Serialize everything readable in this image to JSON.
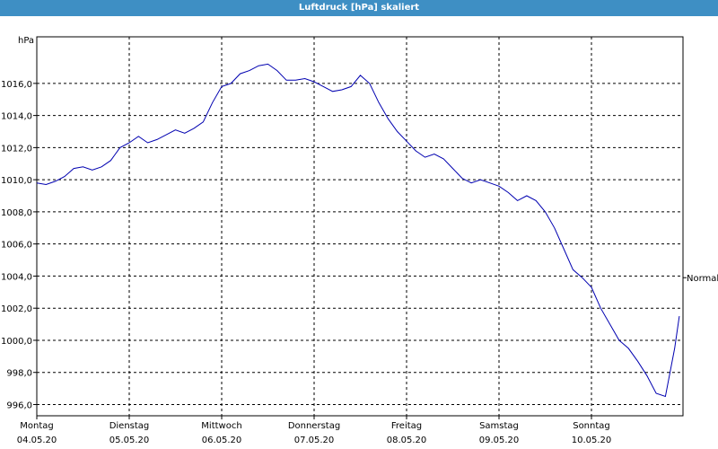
{
  "window": {
    "title": "Luftdruck [hPa] skaliert"
  },
  "colors": {
    "title_bar": "#3e8fc4",
    "series": "#0000b0",
    "grid": "#000000"
  },
  "chart_data": {
    "type": "line",
    "title": "Luftdruck [hPa] skaliert",
    "y_unit_label": "hPa",
    "right_label": "Normal",
    "right_label_value": 1003.9,
    "ylim": [
      995.3,
      1018.9
    ],
    "yticks": [
      "996,0",
      "998,0",
      "1000,0",
      "1002,0",
      "1004,0",
      "1006,0",
      "1008,0",
      "1010,0",
      "1012,0",
      "1014,0",
      "1016,0"
    ],
    "ytick_values": [
      996,
      998,
      1000,
      1002,
      1004,
      1006,
      1008,
      1010,
      1012,
      1014,
      1016
    ],
    "xlim": [
      0,
      7
    ],
    "xticks": [
      {
        "day": "Montag",
        "date": "04.05.20"
      },
      {
        "day": "Dienstag",
        "date": "05.05.20"
      },
      {
        "day": "Mittwoch",
        "date": "06.05.20"
      },
      {
        "day": "Donnerstag",
        "date": "07.05.20"
      },
      {
        "day": "Freitag",
        "date": "08.05.20"
      },
      {
        "day": "Samstag",
        "date": "09.05.20"
      },
      {
        "day": "Sonntag",
        "date": "10.05.20"
      }
    ],
    "grid": true,
    "series": [
      {
        "x": [
          0,
          0.1,
          0.2,
          0.3,
          0.4,
          0.5,
          0.6,
          0.7,
          0.8,
          0.9,
          1.0,
          1.1,
          1.2,
          1.3,
          1.4,
          1.5,
          1.6,
          1.7,
          1.8,
          1.9,
          2.0,
          2.1,
          2.2,
          2.3,
          2.4,
          2.5,
          2.6,
          2.7,
          2.8,
          2.9,
          3.0,
          3.1,
          3.2,
          3.3,
          3.4,
          3.5,
          3.6,
          3.7,
          3.8,
          3.9,
          4.0,
          4.1,
          4.2,
          4.3,
          4.4,
          4.5,
          4.6,
          4.7,
          4.8,
          4.9,
          5.0,
          5.1,
          5.2,
          5.3,
          5.4,
          5.5,
          5.6,
          5.7,
          5.8,
          5.9,
          6.0,
          6.1,
          6.2,
          6.3,
          6.4,
          6.5,
          6.6,
          6.7,
          6.8,
          6.9,
          6.95
        ],
        "values": [
          1009.8,
          1009.7,
          1009.9,
          1010.2,
          1010.7,
          1010.8,
          1010.6,
          1010.8,
          1011.2,
          1012.0,
          1012.3,
          1012.7,
          1012.3,
          1012.5,
          1012.8,
          1013.1,
          1012.9,
          1013.2,
          1013.6,
          1014.8,
          1015.8,
          1016.0,
          1016.6,
          1016.8,
          1017.1,
          1017.2,
          1016.8,
          1016.2,
          1016.2,
          1016.3,
          1016.1,
          1015.8,
          1015.5,
          1015.6,
          1015.8,
          1016.5,
          1016.0,
          1014.8,
          1013.8,
          1013.0,
          1012.4,
          1011.8,
          1011.4,
          1011.6,
          1011.3,
          1010.7,
          1010.1,
          1009.8,
          1010.0,
          1009.8,
          1009.6,
          1009.2,
          1008.7,
          1009.0,
          1008.7,
          1008.0,
          1007.0,
          1005.7,
          1004.4,
          1003.9,
          1003.3,
          1002.0,
          1001.0,
          1000.0,
          999.5,
          998.7,
          997.8,
          996.7,
          996.5,
          999.5,
          1001.5
        ]
      }
    ]
  }
}
